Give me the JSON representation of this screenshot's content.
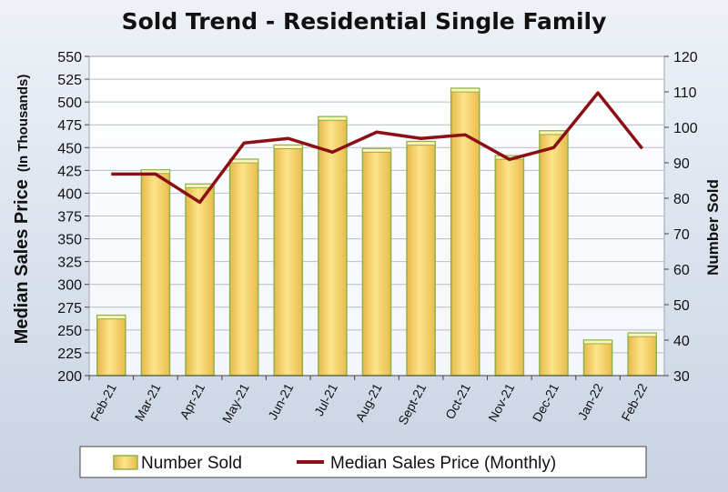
{
  "chart_data": {
    "type": "bar+line",
    "title": "Sold Trend - Residential Single Family",
    "categories": [
      "Feb-21",
      "Mar-21",
      "Apr-21",
      "May-21",
      "Jun-21",
      "Jul-21",
      "Aug-21",
      "Sept-21",
      "Oct-21",
      "Nov-21",
      "Dec-21",
      "Jan-22",
      "Feb-22"
    ],
    "series": [
      {
        "name": "Number Sold",
        "kind": "bar",
        "axis": "right",
        "color": "#f5d36b",
        "values": [
          47,
          88,
          84,
          91,
          95,
          103,
          94,
          96,
          111,
          92,
          99,
          40,
          42
        ]
      },
      {
        "name": "Median Sales Price (Monthly)",
        "kind": "line",
        "axis": "left",
        "color": "#8b0f14",
        "values": [
          421,
          421,
          390,
          455,
          460,
          445,
          467,
          460,
          464,
          437,
          450,
          510,
          449
        ]
      }
    ],
    "y_left": {
      "label_main": "Median Sales Price",
      "label_sub": "(In Thousands)",
      "range": [
        200,
        550
      ],
      "ticks": [
        "200",
        "225",
        "250",
        "275",
        "300",
        "325",
        "350",
        "375",
        "400",
        "425",
        "450",
        "475",
        "500",
        "525",
        "550"
      ]
    },
    "y_right": {
      "label": "Number Sold",
      "range": [
        30,
        120
      ],
      "ticks": [
        "30",
        "40",
        "50",
        "60",
        "70",
        "80",
        "90",
        "100",
        "110",
        "120"
      ]
    },
    "grid": "horizontal",
    "legend_position": "bottom"
  }
}
